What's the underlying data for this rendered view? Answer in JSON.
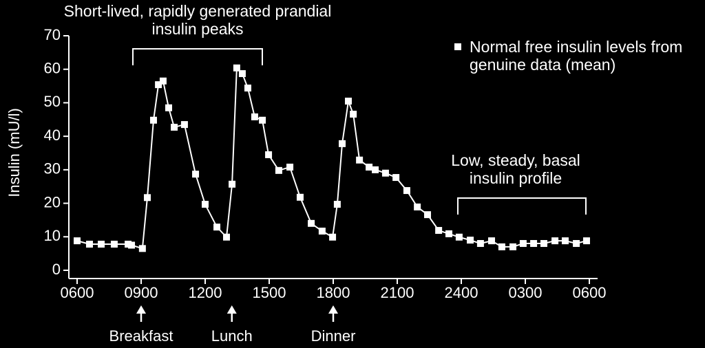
{
  "chart_data": {
    "type": "line",
    "y_label": "Insulin (mU/l)",
    "xlim": [
      6,
      30
    ],
    "ylim": [
      0,
      70
    ],
    "xticks": [
      {
        "value": 6,
        "label": "0600"
      },
      {
        "value": 9,
        "label": "0900"
      },
      {
        "value": 12,
        "label": "1200"
      },
      {
        "value": 15,
        "label": "1500"
      },
      {
        "value": 18,
        "label": "1800"
      },
      {
        "value": 21,
        "label": "2100"
      },
      {
        "value": 24,
        "label": "2400"
      },
      {
        "value": 27,
        "label": "0300"
      },
      {
        "value": 30,
        "label": "0600"
      }
    ],
    "yticks": [
      0,
      10,
      20,
      30,
      40,
      50,
      60,
      70
    ],
    "legend": "top-right",
    "series": [
      {
        "name": "Normal free insulin levels from genuine data (mean)",
        "color": "#ffffff",
        "x": [
          6.0,
          6.58,
          7.13,
          7.74,
          8.39,
          8.55,
          9.06,
          9.29,
          9.58,
          9.81,
          10.03,
          10.29,
          10.55,
          11.03,
          11.55,
          12.0,
          12.55,
          13.0,
          13.26,
          13.48,
          13.74,
          14.0,
          14.32,
          14.68,
          14.97,
          15.45,
          15.97,
          16.45,
          16.97,
          17.48,
          17.97,
          18.19,
          18.42,
          18.71,
          18.94,
          19.23,
          19.68,
          19.97,
          20.45,
          20.94,
          21.45,
          21.94,
          22.42,
          22.94,
          23.42,
          23.9,
          24.42,
          24.9,
          25.42,
          25.9,
          26.42,
          26.9,
          27.39,
          27.87,
          28.39,
          28.87,
          29.39,
          29.87
        ],
        "values": [
          8.8,
          7.8,
          7.8,
          7.8,
          7.8,
          7.5,
          6.5,
          21.7,
          44.8,
          55.4,
          56.5,
          48.5,
          42.7,
          43.5,
          28.7,
          19.7,
          12.9,
          9.9,
          25.7,
          60.4,
          58.7,
          54.4,
          45.8,
          44.8,
          34.5,
          29.8,
          30.8,
          21.8,
          14,
          11.7,
          9.9,
          19.7,
          37.8,
          50.5,
          46.6,
          32.9,
          30.8,
          30,
          29,
          27.7,
          23.8,
          18.9,
          16.6,
          11.9,
          10.9,
          9.9,
          9,
          8,
          8.8,
          7,
          7,
          8,
          8,
          8,
          8.8,
          8.8,
          8,
          8.8
        ]
      }
    ],
    "annotations": [
      "Short-lived, rapidly generated prandial insulin peaks",
      "Low, steady, basal insulin profile"
    ],
    "events": [
      {
        "label": "Breakfast",
        "x": 9
      },
      {
        "label": "Lunch",
        "x": 13.25
      },
      {
        "label": "Dinner",
        "x": 18
      }
    ]
  }
}
